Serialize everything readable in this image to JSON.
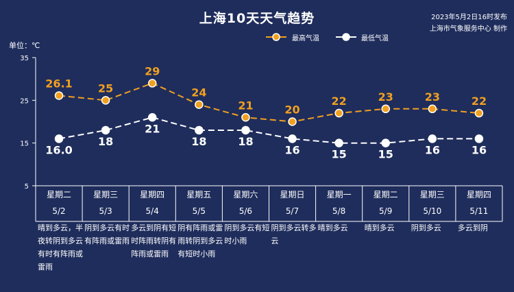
{
  "header": {
    "title": "上海10天天气趋势",
    "publish_time": "2023年5月2日16时发布",
    "producer": "上海市气象服务中心 制作",
    "unit_label": "单位：℃"
  },
  "colors": {
    "background": "#1f2d5c",
    "high": "#f0a020",
    "low": "#ffffff",
    "grid": "#ffffff"
  },
  "chart_data": {
    "type": "line",
    "title": "上海10天天气趋势",
    "ylabel": "单位：℃",
    "ylim": [
      5,
      35
    ],
    "yticks": [
      5,
      15,
      25,
      35
    ],
    "grid": false,
    "legend_position": "top-right",
    "categories": [
      "5/2",
      "5/3",
      "5/4",
      "5/5",
      "5/6",
      "5/7",
      "5/8",
      "5/9",
      "5/10",
      "5/11"
    ],
    "series": [
      {
        "name": "最高气温",
        "values": [
          26.1,
          25,
          29,
          24,
          21,
          20,
          22,
          23,
          23,
          22
        ],
        "labels": [
          "26.1",
          "25",
          "29",
          "24",
          "21",
          "20",
          "22",
          "23",
          "23",
          "22"
        ]
      },
      {
        "name": "最低气温",
        "values": [
          16.0,
          18,
          21,
          18,
          18,
          16,
          15,
          15,
          16,
          16
        ],
        "labels": [
          "16.0",
          "18",
          "21",
          "18",
          "18",
          "16",
          "15",
          "15",
          "16",
          "16"
        ]
      }
    ]
  },
  "days": [
    {
      "weekday": "星期二",
      "date": "5/2",
      "desc": "晴到多云，半夜转阴到多云有时有阵雨或雷雨"
    },
    {
      "weekday": "星期三",
      "date": "5/3",
      "desc": "阴到多云有时有阵雨或雷雨"
    },
    {
      "weekday": "星期四",
      "date": "5/4",
      "desc": "多云到阴有短时阵雨转阴有阵雨或雷雨"
    },
    {
      "weekday": "星期五",
      "date": "5/5",
      "desc": "阴有阵雨或雷雨转阴到多云有短时小雨"
    },
    {
      "weekday": "星期六",
      "date": "5/6",
      "desc": "阴到多云有短时小雨"
    },
    {
      "weekday": "星期日",
      "date": "5/7",
      "desc": "阴到多云转多云"
    },
    {
      "weekday": "星期一",
      "date": "5/8",
      "desc": "晴到多云"
    },
    {
      "weekday": "星期二",
      "date": "5/9",
      "desc": "晴到多云"
    },
    {
      "weekday": "星期三",
      "date": "5/10",
      "desc": "阴到多云"
    },
    {
      "weekday": "星期四",
      "date": "5/11",
      "desc": "多云到阴"
    }
  ]
}
